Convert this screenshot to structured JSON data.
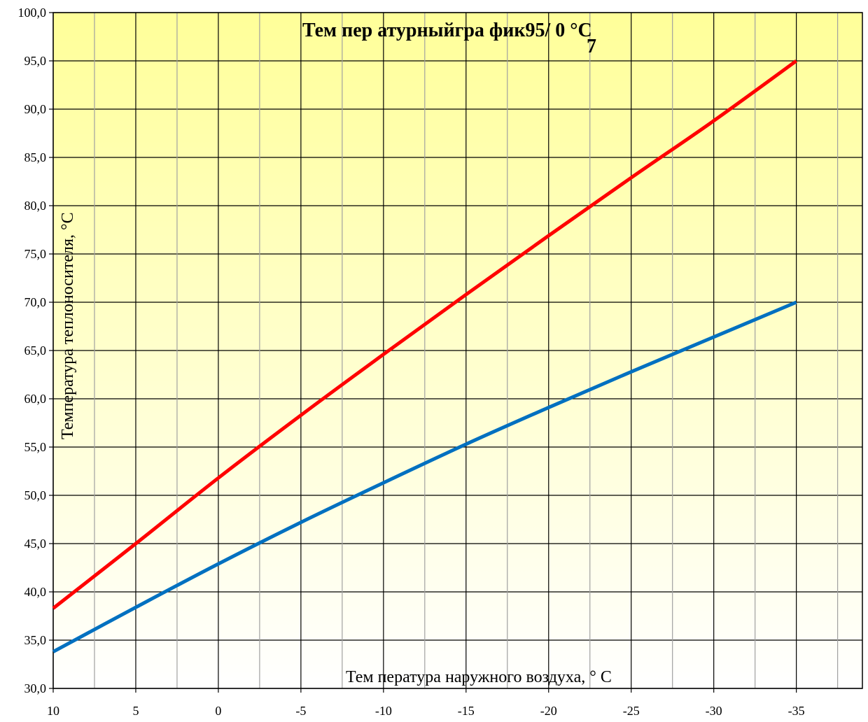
{
  "chart_data": {
    "type": "line",
    "title_main": "Тем пер атурныйгра фик95/ 0 °C",
    "title_sub": "7",
    "xlabel": "Тем  пература наружного воздуха, ° С",
    "ylabel": "Температура теплоносителя, °С",
    "x": [
      10,
      5,
      0,
      -5,
      -10,
      -15,
      -20,
      -25,
      -30,
      -35
    ],
    "xlim": [
      10,
      -39
    ],
    "ylim": [
      30,
      100
    ],
    "x_ticks": [
      "10",
      "5",
      "0",
      "-5",
      "-10",
      "-15",
      "-20",
      "-25",
      "-30",
      "-35"
    ],
    "y_ticks": [
      "30,0",
      "35,0",
      "40,0",
      "45,0",
      "50,0",
      "55,0",
      "60,0",
      "65,0",
      "70,0",
      "75,0",
      "80,0",
      "85,0",
      "90,0",
      "95,0",
      "100,0"
    ],
    "series": [
      {
        "color": "#ff0000",
        "x": [
          10,
          5,
          0,
          -5,
          -10,
          -15,
          -20,
          -25,
          -30,
          -35
        ],
        "values": [
          38.3,
          45.0,
          51.8,
          58.3,
          64.6,
          70.8,
          76.9,
          82.9,
          88.8,
          95.0
        ]
      },
      {
        "color": "#0070c0",
        "x": [
          10,
          5,
          0,
          -5,
          -10,
          -15,
          -20,
          -25,
          -30,
          -35
        ],
        "values": [
          33.8,
          38.4,
          42.9,
          47.2,
          51.3,
          55.3,
          59.1,
          62.8,
          66.4,
          70.0
        ]
      }
    ],
    "grid": true,
    "background": [
      "#ffff99",
      "#ffffff"
    ]
  }
}
